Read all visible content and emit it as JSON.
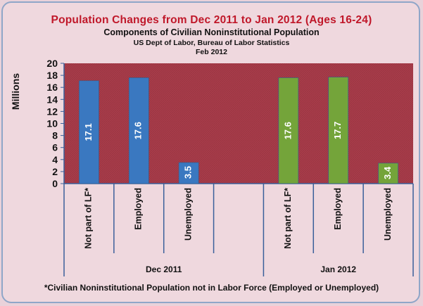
{
  "titles": {
    "main": "Population Changes  from Dec 2011 to Jan 2012 (Ages 16-24)",
    "sub1": "Components of Civilian Noninstitutional Population",
    "sub2": "US Dept of Labor, Bureau of Labor Statistics",
    "sub3": "Feb 2012"
  },
  "footnote": "*Civilian Noninstitutional Population not in Labor Force (Employed or Unemployed)",
  "chart_data": {
    "type": "bar",
    "ylabel": "Millions",
    "ylim": [
      0,
      20
    ],
    "yticks": [
      0,
      2,
      4,
      6,
      8,
      10,
      12,
      14,
      16,
      18,
      20
    ],
    "grid": false,
    "plot_background": "#a83c4a",
    "groups": [
      {
        "name": "Dec 2011",
        "color": "#3a78c0",
        "categories": [
          "Not part of LF*",
          "Employed",
          "Unemployed"
        ],
        "values": [
          17.1,
          17.6,
          3.5
        ]
      },
      {
        "name": "Jan 2012",
        "color": "#74a43a",
        "categories": [
          "Not part of LF*",
          "Employed",
          "Unemployed"
        ],
        "values": [
          17.6,
          17.7,
          3.4
        ]
      }
    ]
  }
}
